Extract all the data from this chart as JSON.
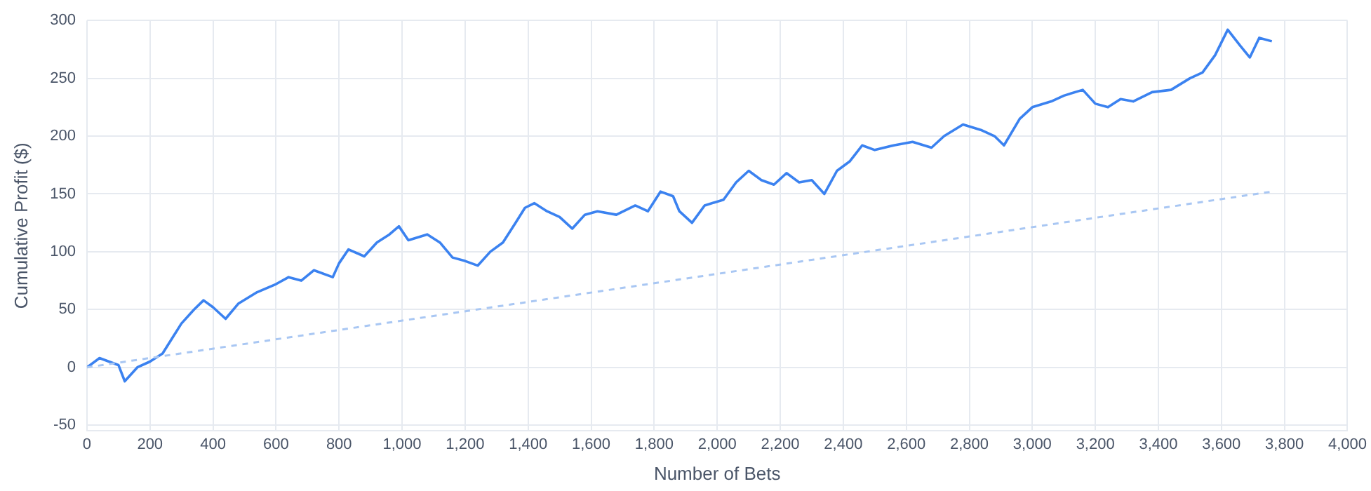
{
  "chart_data": {
    "type": "line",
    "xlabel": "Number of Bets",
    "ylabel": "Cumulative Profit ($)",
    "xlim": [
      0,
      4000
    ],
    "ylim": [
      -55,
      300
    ],
    "xticks": [
      0,
      200,
      400,
      600,
      800,
      {
        "value": 1000,
        "label": "1,000"
      },
      {
        "value": 1200,
        "label": "1,200"
      },
      {
        "value": 1400,
        "label": "1,400"
      },
      {
        "value": 1600,
        "label": "1,600"
      },
      {
        "value": 1800,
        "label": "1,800"
      },
      {
        "value": 2000,
        "label": "2,000"
      },
      {
        "value": 2200,
        "label": "2,200"
      },
      {
        "value": 2400,
        "label": "2,400"
      },
      {
        "value": 2600,
        "label": "2,600"
      },
      {
        "value": 2800,
        "label": "2,800"
      },
      {
        "value": 3000,
        "label": "3,000"
      },
      {
        "value": 3200,
        "label": "3,200"
      },
      {
        "value": 3400,
        "label": "3,400"
      },
      {
        "value": 3600,
        "label": "3,600"
      },
      {
        "value": 3800,
        "label": "3,800"
      },
      {
        "value": 4000,
        "label": "4,000"
      }
    ],
    "yticks": [
      -50,
      0,
      50,
      100,
      150,
      200,
      250,
      300
    ],
    "grid": true,
    "legend": false,
    "marker": "none",
    "series": [
      {
        "color": "#a9c7f3",
        "line_style": "dashed",
        "x": [
          0,
          3760
        ],
        "values": [
          0,
          152
        ]
      },
      {
        "color": "#3b82f0",
        "line_style": "solid",
        "x": [
          0,
          40,
          100,
          120,
          160,
          200,
          240,
          270,
          300,
          340,
          370,
          400,
          440,
          480,
          540,
          600,
          640,
          680,
          720,
          780,
          800,
          830,
          880,
          920,
          960,
          990,
          1020,
          1080,
          1120,
          1160,
          1200,
          1240,
          1280,
          1320,
          1360,
          1390,
          1420,
          1460,
          1500,
          1540,
          1580,
          1620,
          1680,
          1740,
          1780,
          1820,
          1860,
          1880,
          1920,
          1960,
          2020,
          2060,
          2100,
          2140,
          2180,
          2220,
          2260,
          2300,
          2340,
          2380,
          2420,
          2440,
          2460,
          2500,
          2560,
          2620,
          2680,
          2720,
          2780,
          2840,
          2880,
          2910,
          2960,
          3000,
          3060,
          3100,
          3160,
          3200,
          3240,
          3280,
          3320,
          3380,
          3440,
          3500,
          3540,
          3580,
          3620,
          3660,
          3690,
          3720,
          3760
        ],
        "values": [
          0,
          8,
          2,
          -12,
          0,
          5,
          12,
          25,
          38,
          50,
          58,
          52,
          42,
          55,
          65,
          72,
          78,
          75,
          84,
          78,
          90,
          102,
          96,
          108,
          115,
          122,
          110,
          115,
          108,
          95,
          92,
          88,
          100,
          108,
          125,
          138,
          142,
          135,
          130,
          120,
          132,
          135,
          132,
          140,
          135,
          152,
          148,
          135,
          125,
          140,
          145,
          160,
          170,
          162,
          158,
          168,
          160,
          162,
          150,
          170,
          178,
          185,
          192,
          188,
          192,
          195,
          190,
          200,
          210,
          205,
          200,
          192,
          215,
          225,
          230,
          235,
          240,
          228,
          225,
          232,
          230,
          238,
          240,
          250,
          255,
          270,
          292,
          278,
          268,
          285,
          282
        ]
      }
    ]
  }
}
